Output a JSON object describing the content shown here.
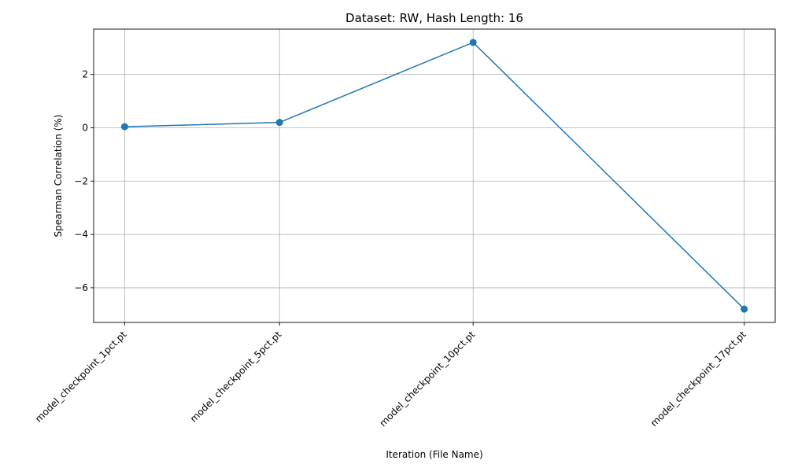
{
  "chart_data": {
    "type": "line",
    "title": "Dataset: RW, Hash Length: 16",
    "xlabel": "Iteration (File Name)",
    "ylabel": "Spearman Correlation (%)",
    "categories": [
      "model_checkpoint_1pct.pt",
      "model_checkpoint_5pct.pt",
      "model_checkpoint_10pct.pt",
      "model_checkpoint_17pct.pt"
    ],
    "x": [
      1,
      5,
      10,
      17
    ],
    "series": [
      {
        "values": [
          0.04,
          0.2,
          3.2,
          -6.8
        ],
        "color": "#1f77b4",
        "marker": "circle"
      }
    ],
    "xlim": [
      0.2,
      17.8
    ],
    "ylim": [
      -7.3,
      3.7
    ],
    "yticks": [
      -6,
      -4,
      -2,
      0,
      2
    ],
    "ytick_labels": [
      "−6",
      "−4",
      "−2",
      "0",
      "2"
    ],
    "grid": true
  }
}
